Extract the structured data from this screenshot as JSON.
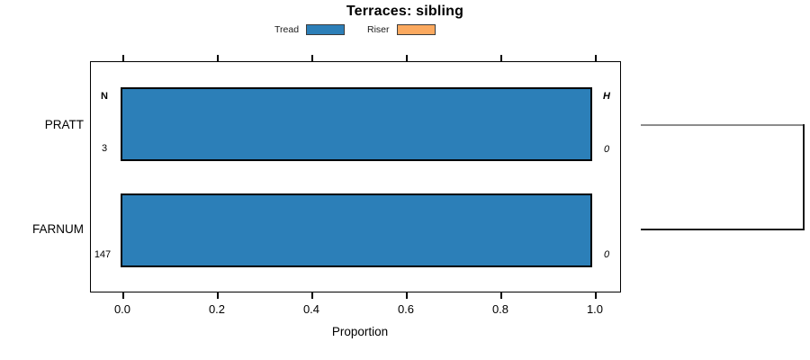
{
  "title": "Terraces: sibling",
  "legend": {
    "items": [
      {
        "label": "Tread",
        "color": "#2C7FB8"
      },
      {
        "label": "Riser",
        "color": "#FBA95F"
      }
    ]
  },
  "axis": {
    "xlabel": "Proportion",
    "ticks": [
      "0.0",
      "0.2",
      "0.4",
      "0.6",
      "0.8",
      "1.0"
    ]
  },
  "panel": {
    "n_header": "N",
    "h_header": "H",
    "rows": [
      {
        "category": "PRATT",
        "n": "3",
        "h": "0"
      },
      {
        "category": "FARNUM",
        "n": "147",
        "h": "0"
      }
    ]
  },
  "chart_data": {
    "type": "bar",
    "orientation": "horizontal",
    "title": "Terraces: sibling",
    "xlabel": "Proportion",
    "xlim": [
      0.0,
      1.0
    ],
    "xticks": [
      0.0,
      0.2,
      0.4,
      0.6,
      0.8,
      1.0
    ],
    "categories": [
      "PRATT",
      "FARNUM"
    ],
    "series": [
      {
        "name": "Tread",
        "color": "#2C7FB8",
        "values": [
          1.0,
          1.0
        ]
      },
      {
        "name": "Riser",
        "color": "#FBA95F",
        "values": [
          0.0,
          0.0
        ]
      }
    ],
    "annotations": {
      "n_column_header": "N",
      "h_column_header": "H",
      "n_values": [
        3,
        147
      ],
      "h_values": [
        0,
        0
      ]
    },
    "legend_position": "top",
    "grid": false,
    "right_bracket": {
      "connects": [
        "PRATT",
        "FARNUM"
      ],
      "top_line_color": "#8c8c8c",
      "bottom_line_color": "#1a1a1a",
      "right_line_color": "#1a1a1a"
    }
  },
  "colors": {
    "tread_blue": "#2C7FB8",
    "riser_orange": "#FBA95F",
    "bracket_gray": "#8c8c8c",
    "bracket_black": "#1a1a1a"
  }
}
